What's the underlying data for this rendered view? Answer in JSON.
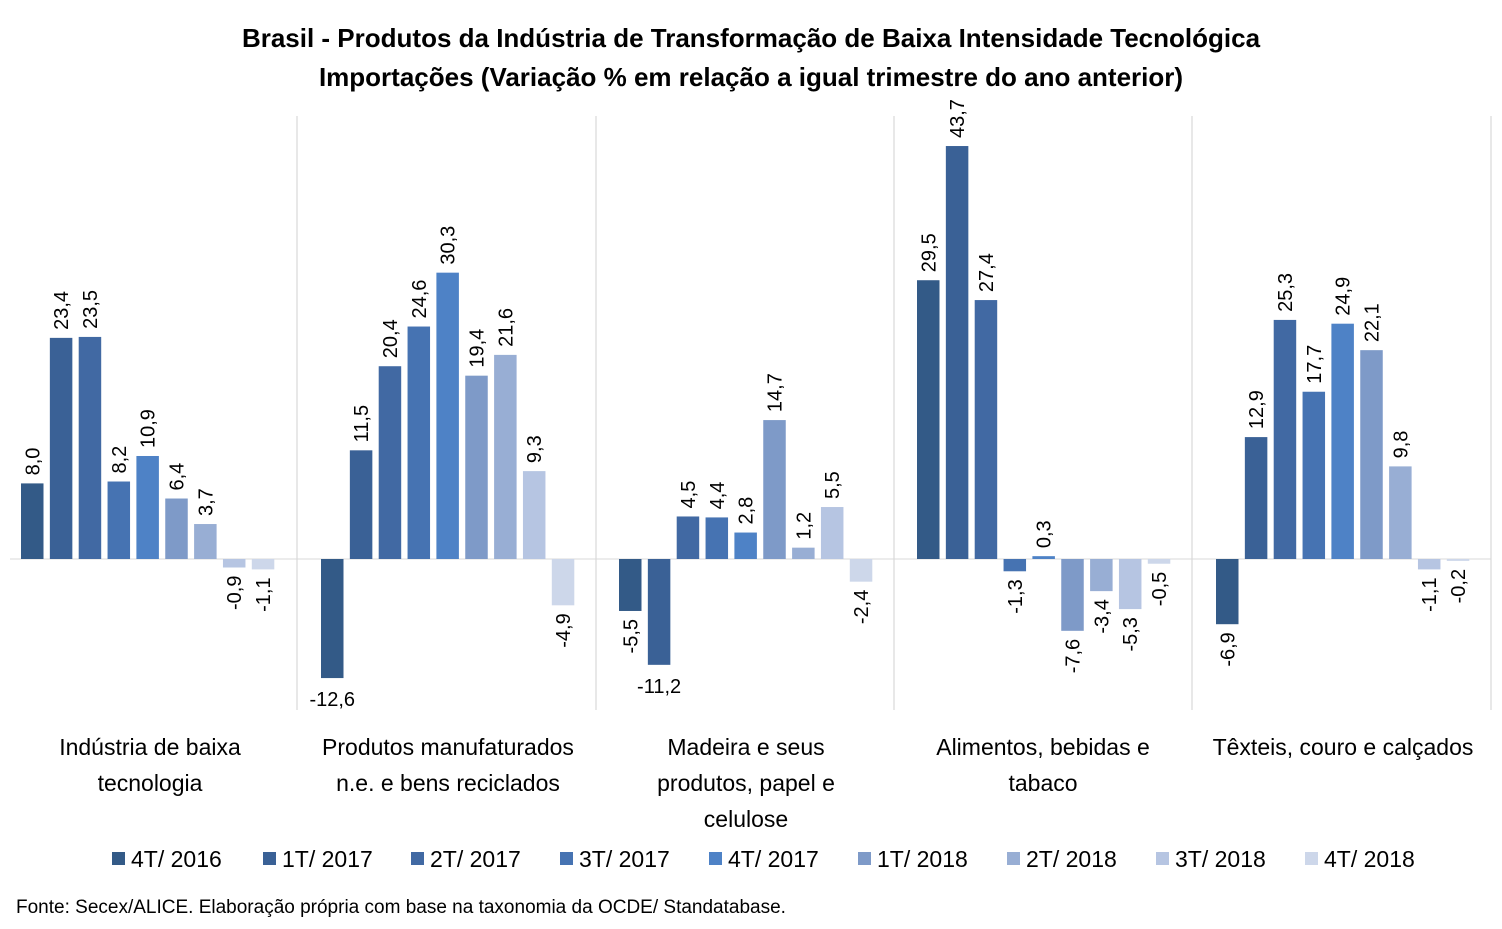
{
  "chart_data": {
    "type": "bar",
    "title": "Brasil - Produtos da Indústria de Transformação de Baixa Intensidade Tecnológica",
    "subtitle": "Importações (Variação % em relação a igual trimestre do ano anterior)",
    "categories": [
      [
        "Indústria de baixa",
        "tecnologia"
      ],
      [
        "Produtos manufaturados",
        "n.e. e bens reciclados"
      ],
      [
        "Madeira e seus",
        "produtos, papel e",
        "celulose"
      ],
      [
        "Alimentos, bebidas e",
        "tabaco"
      ],
      [
        "Têxteis, couro e calçados"
      ]
    ],
    "series": [
      {
        "name": "4T/ 2016",
        "color": "#335a87",
        "values": [
          8.0,
          -12.6,
          -5.5,
          29.5,
          -6.9
        ]
      },
      {
        "name": "1T/ 2017",
        "color": "#3a6196",
        "values": [
          23.4,
          11.5,
          -11.2,
          43.7,
          12.9
        ]
      },
      {
        "name": "2T/ 2017",
        "color": "#4169a3",
        "values": [
          23.5,
          20.4,
          4.5,
          27.4,
          25.3
        ]
      },
      {
        "name": "3T/ 2017",
        "color": "#4673b2",
        "values": [
          8.2,
          24.6,
          4.4,
          -1.3,
          17.7
        ]
      },
      {
        "name": "4T/ 2017",
        "color": "#4e82c6",
        "values": [
          10.9,
          30.3,
          2.8,
          0.3,
          24.9
        ]
      },
      {
        "name": "1T/ 2018",
        "color": "#7e9ac8",
        "values": [
          6.4,
          19.4,
          14.7,
          -7.6,
          22.1
        ]
      },
      {
        "name": "2T/ 2018",
        "color": "#98aed4",
        "values": [
          3.7,
          21.6,
          1.2,
          -3.4,
          9.8
        ]
      },
      {
        "name": "3T/ 2018",
        "color": "#b6c5e2",
        "values": [
          -0.9,
          9.3,
          5.5,
          -5.3,
          -1.1
        ]
      },
      {
        "name": "4T/ 2018",
        "color": "#cdd7ea",
        "values": [
          -1.1,
          -4.9,
          -2.4,
          -0.5,
          -0.2
        ]
      }
    ],
    "legend_position": "bottom",
    "grid": false
  },
  "source_note": "Fonte: Secex/ALICE. Elaboração própria com base na taxonomia da OCDE/ Standatabase."
}
